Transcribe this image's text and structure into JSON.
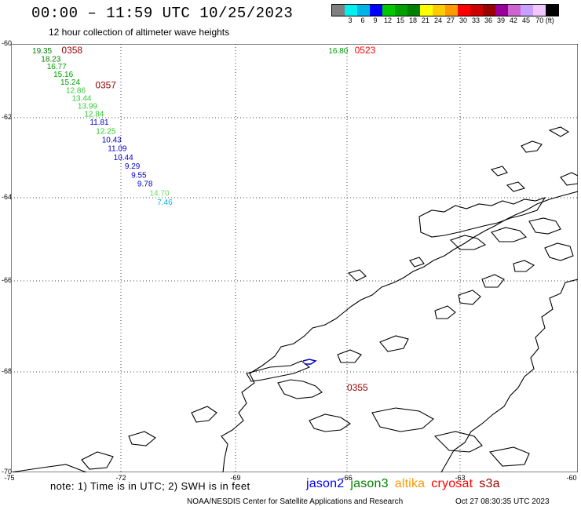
{
  "header": {
    "title": "00:00 – 11:59 UTC 10/25/2023",
    "subtitle": "12 hour collection of altimeter wave heights"
  },
  "colorbar": {
    "colors": [
      "#7f7f7f",
      "#00f0f0",
      "#00b4e6",
      "#0000ff",
      "#00c800",
      "#00a000",
      "#008000",
      "#ffff00",
      "#ffcc00",
      "#ff9900",
      "#ff0000",
      "#cc0000",
      "#990000",
      "#990099",
      "#cc66cc",
      "#c8a0ff",
      "#f0c8ff",
      "#000000"
    ],
    "labels": [
      "3",
      "6",
      "9",
      "12",
      "15",
      "18",
      "21",
      "24",
      "27",
      "30",
      "33",
      "36",
      "39",
      "42",
      "45",
      "70 (ft)"
    ]
  },
  "axes": {
    "lat_labels": [
      "-60",
      "-62",
      "-64",
      "-66",
      "-68",
      "-70"
    ],
    "lon_labels": [
      "-75",
      "-72",
      "-69",
      "-66",
      "-63",
      "-60"
    ]
  },
  "observations": [
    {
      "value": "19.35",
      "lon": -74.42,
      "lat": -60.15,
      "color": "#008000"
    },
    {
      "value": "18.23",
      "lon": -74.18,
      "lat": -60.37,
      "color": "#008000"
    },
    {
      "value": "16.77",
      "lon": -74.02,
      "lat": -60.57,
      "color": "#00a000"
    },
    {
      "value": "15.16",
      "lon": -73.84,
      "lat": -60.79,
      "color": "#00a000"
    },
    {
      "value": "15.24",
      "lon": -73.65,
      "lat": -61.0,
      "color": "#00a000"
    },
    {
      "value": "12.86",
      "lon": -73.5,
      "lat": -61.22,
      "color": "#33cc33"
    },
    {
      "value": "13.44",
      "lon": -73.34,
      "lat": -61.44,
      "color": "#33cc33"
    },
    {
      "value": "13.99",
      "lon": -73.18,
      "lat": -61.65,
      "color": "#33cc33"
    },
    {
      "value": "12.84",
      "lon": -73.0,
      "lat": -61.86,
      "color": "#33cc33"
    },
    {
      "value": "11.81",
      "lon": -72.85,
      "lat": -62.08,
      "color": "#0000cc"
    },
    {
      "value": "12.25",
      "lon": -72.68,
      "lat": -62.3,
      "color": "#33cc33"
    },
    {
      "value": "10.43",
      "lon": -72.52,
      "lat": -62.52,
      "color": "#0000cc"
    },
    {
      "value": "11.09",
      "lon": -72.36,
      "lat": -62.74,
      "color": "#0000cc"
    },
    {
      "value": "10.44",
      "lon": -72.2,
      "lat": -62.96,
      "color": "#0000cc"
    },
    {
      "value": "9.29",
      "lon": -71.9,
      "lat": -63.18,
      "color": "#0000cc"
    },
    {
      "value": "9.55",
      "lon": -71.73,
      "lat": -63.4,
      "color": "#0000cc"
    },
    {
      "value": "9.78",
      "lon": -71.57,
      "lat": -63.62,
      "color": "#0000cc"
    },
    {
      "value": "14.70",
      "lon": -71.25,
      "lat": -63.85,
      "color": "#66dd66"
    },
    {
      "value": "7.46",
      "lon": -71.05,
      "lat": -64.08,
      "color": "#00b4e6"
    },
    {
      "value": "16.80",
      "lon": -66.5,
      "lat": -60.15,
      "color": "#00a000"
    }
  ],
  "time_labels": [
    {
      "text": "0358",
      "lon": -73.62,
      "lat": -60.15,
      "color": "#990000"
    },
    {
      "text": "0357",
      "lon": -72.7,
      "lat": -61.1,
      "color": "#990000"
    },
    {
      "text": "0523",
      "lon": -65.8,
      "lat": -60.15,
      "color": "#ff0000"
    },
    {
      "text": "0355",
      "lon": -66.0,
      "lat": -68.3,
      "color": "#990000"
    }
  ],
  "note": "note:  1) Time is in UTC;  2) SWH is in feet",
  "legend": [
    {
      "name": "jason2",
      "color": "#0000ff"
    },
    {
      "name": "jason3",
      "color": "#008000"
    },
    {
      "name": "altika",
      "color": "#ff9900"
    },
    {
      "name": "cryosat",
      "color": "#ff0000"
    },
    {
      "name": "s3a",
      "color": "#990000"
    }
  ],
  "footer": {
    "credit": "NOAA/NESDIS Center for Satellite Applications and Research",
    "date": "Oct 27 08:30:35 UTC 2023"
  }
}
